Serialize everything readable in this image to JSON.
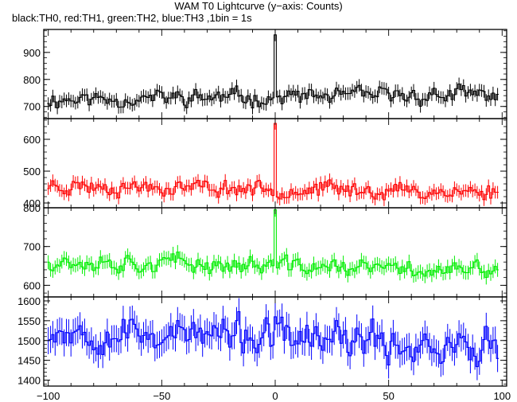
{
  "title": "WAM T0 Lightcurve (y−axis: Counts)",
  "subtitle": "black:TH0, red:TH1, green:TH2, blue:TH3 ,1bin = 1s",
  "chart_data": {
    "type": "line",
    "xlabel": "",
    "xlim": [
      -102,
      102
    ],
    "xticks": [
      -100,
      -50,
      0,
      50,
      100
    ],
    "xtick_labels": [
      "−100",
      "−50",
      "0",
      "50",
      "100"
    ],
    "grid": false,
    "panels": [
      {
        "name": "TH0",
        "color": "#000000",
        "ylim": [
          655,
          985
        ],
        "yticks": [
          700,
          800,
          900
        ],
        "ytick_labels": [
          "700",
          "800",
          "900"
        ],
        "baseline": 735,
        "noise": 26,
        "trend": 0.08,
        "peak": 965,
        "seed": 11
      },
      {
        "name": "TH1",
        "color": "#ff0000",
        "ylim": [
          385,
          665
        ],
        "yticks": [
          400,
          500,
          600
        ],
        "ytick_labels": [
          "400",
          "500",
          "600"
        ],
        "baseline": 445,
        "noise": 22,
        "trend": -0.12,
        "peak": 650,
        "seed": 23
      },
      {
        "name": "TH2",
        "color": "#00ee00",
        "ylim": [
          570,
          800
        ],
        "yticks": [
          600,
          700,
          800
        ],
        "ytick_labels": [
          "600",
          "700",
          "800"
        ],
        "baseline": 650,
        "noise": 20,
        "trend": -0.15,
        "peak": 795,
        "seed": 37
      },
      {
        "name": "TH3",
        "color": "#0000ff",
        "ylim": [
          1385,
          1610
        ],
        "yticks": [
          1400,
          1450,
          1500,
          1550,
          1600
        ],
        "ytick_labels": [
          "1400",
          "1450",
          "1500",
          "1550",
          "1600"
        ],
        "baseline": 1505,
        "noise": 38,
        "trend": -0.25,
        "peak": 1560,
        "seed": 53
      }
    ]
  }
}
